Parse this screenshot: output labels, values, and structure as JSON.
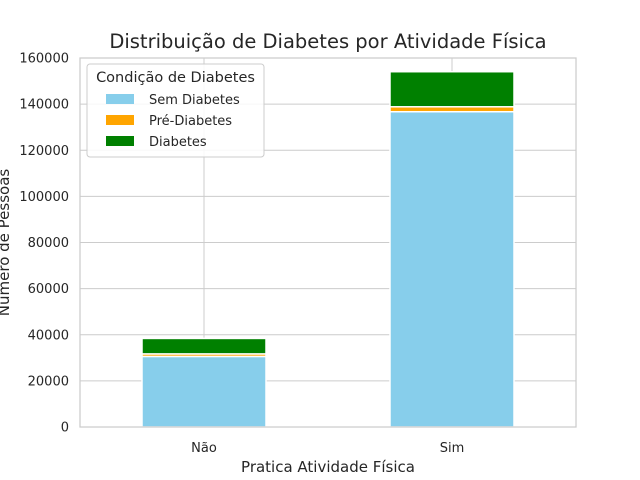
{
  "chart_data": {
    "type": "bar",
    "stacked": true,
    "title": "Distribuição de Diabetes por Atividade Física",
    "xlabel": "Pratica Atividade Física",
    "ylabel": "Número de Pessoas",
    "categories": [
      "Não",
      "Sim"
    ],
    "series": [
      {
        "name": "Sem Diabetes",
        "color": "#87ceeb",
        "values": [
          30600,
          136700
        ]
      },
      {
        "name": "Pré-Diabetes",
        "color": "#ffa500",
        "values": [
          1100,
          2150
        ]
      },
      {
        "name": "Diabetes",
        "color": "#008000",
        "values": [
          6700,
          15200
        ]
      }
    ],
    "ylim": [
      0,
      160000
    ],
    "yticks": [
      0,
      20000,
      40000,
      60000,
      80000,
      100000,
      120000,
      140000,
      160000
    ],
    "grid": true,
    "legend": {
      "title": "Condição de Diabetes",
      "placement": "top-left"
    }
  }
}
